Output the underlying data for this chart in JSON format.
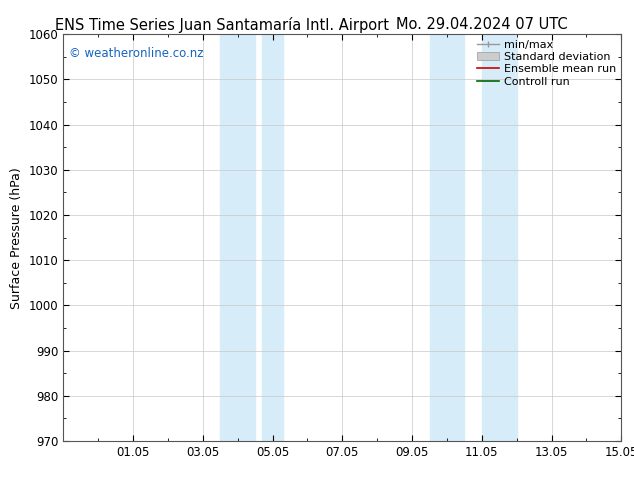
{
  "title_left": "ENS Time Series Juan Santamaría Intl. Airport",
  "title_right": "Mo. 29.04.2024 07 UTC",
  "ylabel": "Surface Pressure (hPa)",
  "ylim": [
    970,
    1060
  ],
  "yticks": [
    970,
    980,
    990,
    1000,
    1010,
    1020,
    1030,
    1040,
    1050,
    1060
  ],
  "xlim": [
    0,
    16
  ],
  "x_tick_labels": [
    "01.05",
    "03.05",
    "05.05",
    "07.05",
    "09.05",
    "11.05",
    "13.05",
    "15.05"
  ],
  "x_tick_positions": [
    2,
    4,
    6,
    8,
    10,
    12,
    14,
    16
  ],
  "shaded_regions": [
    {
      "x_start": 4.5,
      "x_end": 5.5
    },
    {
      "x_start": 5.7,
      "x_end": 6.3
    },
    {
      "x_start": 10.5,
      "x_end": 11.5
    },
    {
      "x_start": 12.0,
      "x_end": 13.0
    }
  ],
  "shaded_color": "#d6ecf8",
  "watermark": "© weatheronline.co.nz",
  "watermark_color": "#1565c0",
  "background_color": "#ffffff",
  "plot_bg_color": "#ffffff",
  "grid_color": "#c8c8c8",
  "spine_color": "#555555",
  "title_fontsize": 10.5,
  "axis_label_fontsize": 9,
  "tick_fontsize": 8.5,
  "legend_fontsize": 8,
  "watermark_fontsize": 8.5
}
